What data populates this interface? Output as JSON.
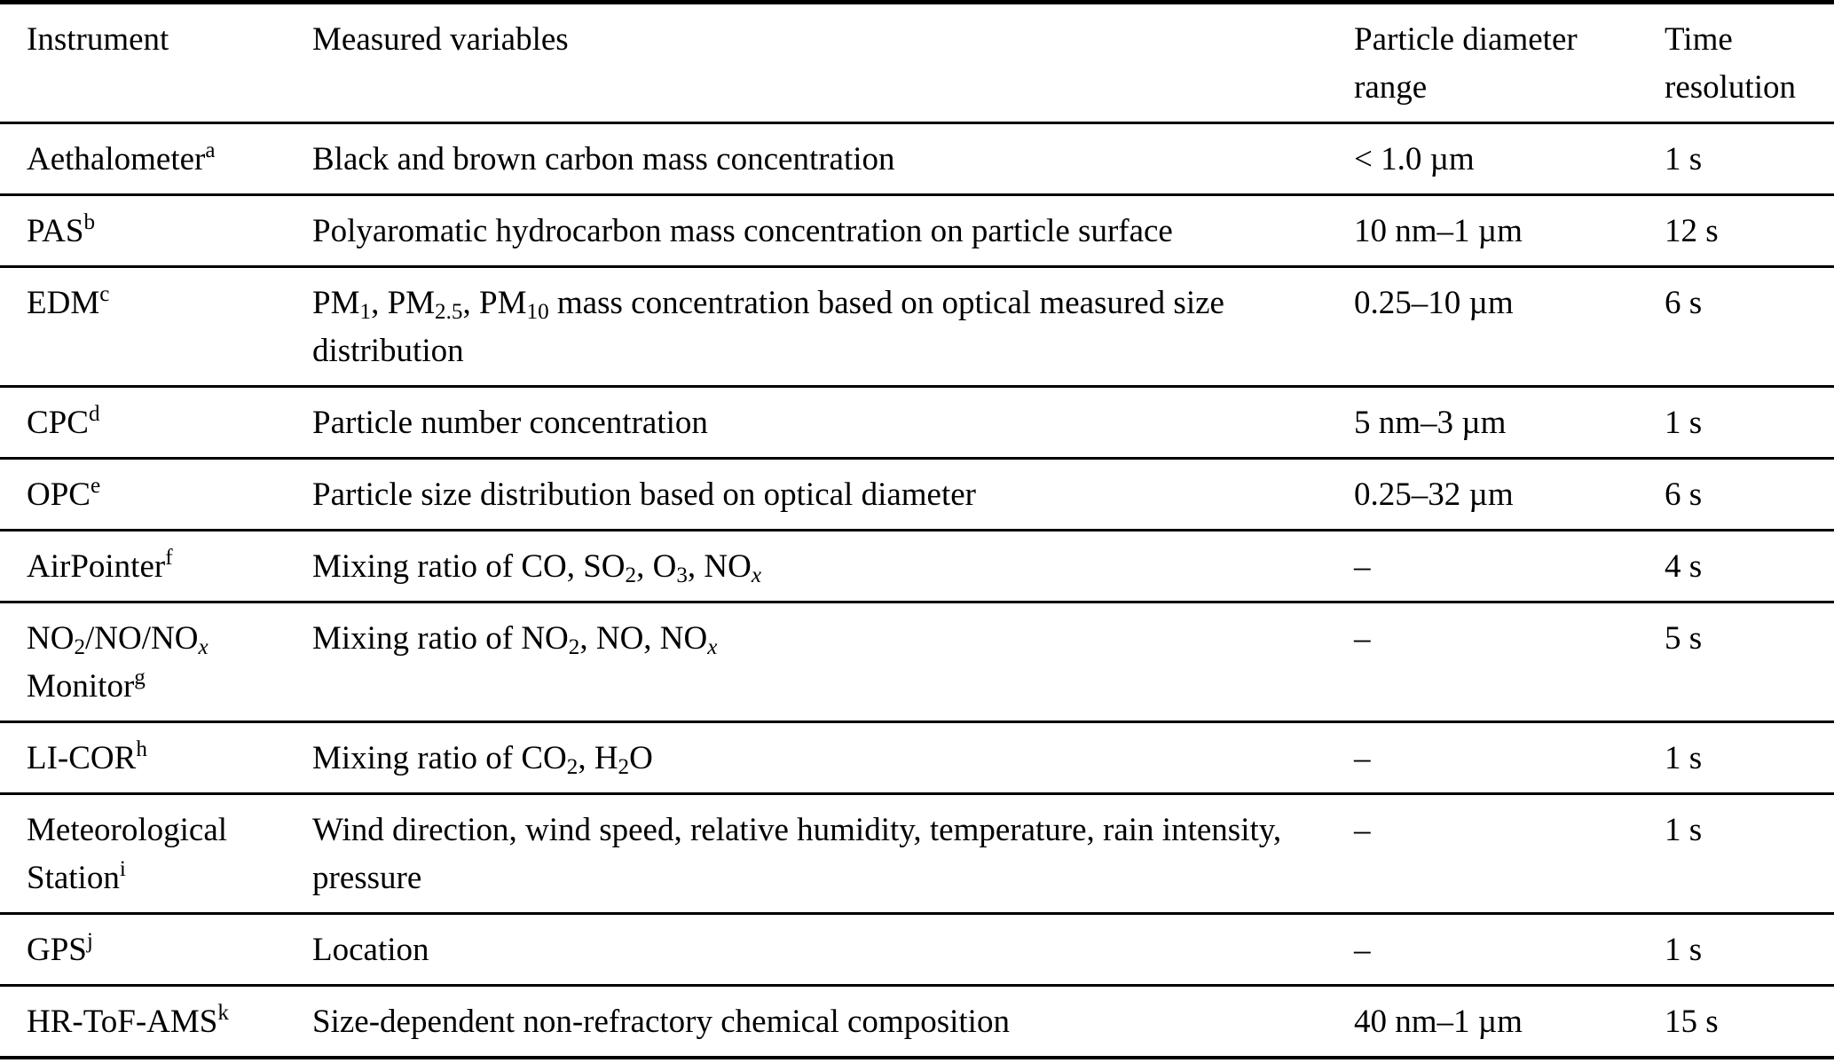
{
  "colors": {
    "text": "#000000",
    "background": "#ffffff",
    "rule": "#000000"
  },
  "table": {
    "columns": [
      "Instrument",
      "Measured variables",
      "Particle diameter\nrange",
      "Time\nresolution"
    ],
    "rows": [
      {
        "instrument": "Aethalometer^{a}",
        "variables": "Black and brown carbon mass concentration",
        "diameter_range": "< 1.0 µm",
        "time_resolution": "1 s"
      },
      {
        "instrument": "PAS^{b}",
        "variables": "Polyaromatic hydrocarbon mass concentration on particle surface",
        "diameter_range": "10 nm–1 µm",
        "time_resolution": "12 s"
      },
      {
        "instrument": "EDM^{c}",
        "variables": "PM_{1}, PM_{2.5}, PM_{10} mass concentration based on optical measured size distribution",
        "diameter_range": "0.25–10 µm",
        "time_resolution": "6 s"
      },
      {
        "instrument": "CPC^{d}",
        "variables": "Particle number concentration",
        "diameter_range": "5 nm–3 µm",
        "time_resolution": "1 s"
      },
      {
        "instrument": "OPC^{e}",
        "variables": "Particle size distribution based on optical diameter",
        "diameter_range": "0.25–32 µm",
        "time_resolution": "6 s"
      },
      {
        "instrument": "AirPointer^{f}",
        "variables": "Mixing ratio of CO, SO_{2}, O_{3}, NO_i{x}",
        "diameter_range": "–",
        "time_resolution": "4 s"
      },
      {
        "instrument": "NO_{2}/NO/NO_i{x} Monitor^{g}",
        "variables": "Mixing ratio of NO_{2}, NO, NO_i{x}",
        "diameter_range": "–",
        "time_resolution": "5 s"
      },
      {
        "instrument": "LI-COR^{h}",
        "variables": "Mixing ratio of CO_{2}, H_{2}O",
        "diameter_range": "–",
        "time_resolution": "1 s"
      },
      {
        "instrument": "Meteorological Station^{i}",
        "variables": "Wind direction, wind speed, relative humidity, temperature, rain intensity, pressure",
        "diameter_range": "–",
        "time_resolution": "1 s"
      },
      {
        "instrument": "GPS^{j}",
        "variables": "Location",
        "diameter_range": "–",
        "time_resolution": "1 s"
      },
      {
        "instrument": "HR-ToF-AMS^{k}",
        "variables": "Size-dependent non-refractory chemical composition",
        "diameter_range": "40 nm–1 µm",
        "time_resolution": "15 s"
      }
    ]
  }
}
